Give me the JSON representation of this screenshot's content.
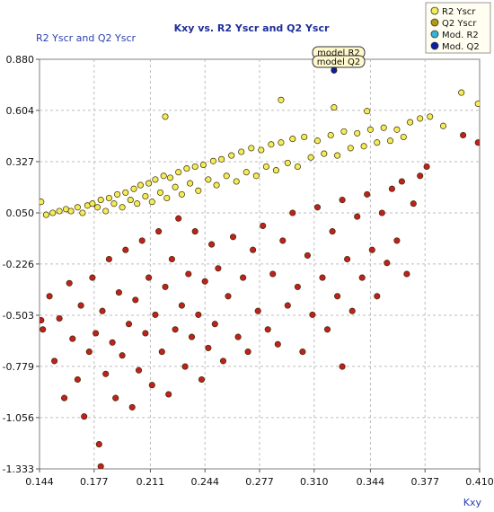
{
  "chart_data": {
    "type": "scatter",
    "title": "Kxy vs. R2 Yscr and Q2 Yscr",
    "ylabel": "R2 Yscr and Q2 Yscr",
    "xlabel": "Kxy",
    "xlim": [
      0.144,
      0.41
    ],
    "ylim": [
      -1.333,
      0.88
    ],
    "x_ticks": [
      "0.144",
      "0.177",
      "0.211",
      "0.244",
      "0.277",
      "0.310",
      "0.344",
      "0.377",
      "0.410"
    ],
    "y_ticks": [
      "0.880",
      "0.604",
      "0.327",
      "0.050",
      "-0.226",
      "-0.503",
      "-0.779",
      "-1.056",
      "-1.333"
    ],
    "grid": "dashed",
    "legend_position": "top-right",
    "annotations": [
      "model R2",
      "model Q2"
    ],
    "series": [
      {
        "name": "R2 Yscr",
        "color": "#f2ec5a",
        "values": [
          [
            0.148,
            0.04
          ],
          [
            0.152,
            0.05
          ],
          [
            0.156,
            0.06
          ],
          [
            0.16,
            0.07
          ],
          [
            0.163,
            0.06
          ],
          [
            0.167,
            0.08
          ],
          [
            0.17,
            0.05
          ],
          [
            0.173,
            0.09
          ],
          [
            0.176,
            0.1
          ],
          [
            0.179,
            0.08
          ],
          [
            0.181,
            0.12
          ],
          [
            0.184,
            0.06
          ],
          [
            0.186,
            0.13
          ],
          [
            0.189,
            0.1
          ],
          [
            0.191,
            0.15
          ],
          [
            0.194,
            0.08
          ],
          [
            0.196,
            0.16
          ],
          [
            0.199,
            0.12
          ],
          [
            0.201,
            0.18
          ],
          [
            0.203,
            0.1
          ],
          [
            0.205,
            0.2
          ],
          [
            0.208,
            0.14
          ],
          [
            0.21,
            0.21
          ],
          [
            0.212,
            0.11
          ],
          [
            0.214,
            0.23
          ],
          [
            0.217,
            0.16
          ],
          [
            0.219,
            0.25
          ],
          [
            0.221,
            0.13
          ],
          [
            0.223,
            0.24
          ],
          [
            0.226,
            0.19
          ],
          [
            0.228,
            0.27
          ],
          [
            0.23,
            0.15
          ],
          [
            0.233,
            0.29
          ],
          [
            0.235,
            0.21
          ],
          [
            0.238,
            0.3
          ],
          [
            0.24,
            0.17
          ],
          [
            0.243,
            0.31
          ],
          [
            0.246,
            0.23
          ],
          [
            0.249,
            0.33
          ],
          [
            0.251,
            0.2
          ],
          [
            0.254,
            0.34
          ],
          [
            0.257,
            0.25
          ],
          [
            0.26,
            0.36
          ],
          [
            0.263,
            0.22
          ],
          [
            0.266,
            0.38
          ],
          [
            0.269,
            0.27
          ],
          [
            0.272,
            0.4
          ],
          [
            0.275,
            0.25
          ],
          [
            0.278,
            0.39
          ],
          [
            0.281,
            0.3
          ],
          [
            0.284,
            0.42
          ],
          [
            0.287,
            0.28
          ],
          [
            0.29,
            0.43
          ],
          [
            0.294,
            0.32
          ],
          [
            0.297,
            0.45
          ],
          [
            0.3,
            0.3
          ],
          [
            0.304,
            0.46
          ],
          [
            0.308,
            0.35
          ],
          [
            0.312,
            0.44
          ],
          [
            0.316,
            0.37
          ],
          [
            0.32,
            0.47
          ],
          [
            0.324,
            0.36
          ],
          [
            0.328,
            0.49
          ],
          [
            0.332,
            0.4
          ],
          [
            0.336,
            0.48
          ],
          [
            0.34,
            0.41
          ],
          [
            0.344,
            0.5
          ],
          [
            0.348,
            0.43
          ],
          [
            0.352,
            0.51
          ],
          [
            0.356,
            0.44
          ],
          [
            0.36,
            0.5
          ],
          [
            0.364,
            0.46
          ],
          [
            0.368,
            0.54
          ],
          [
            0.374,
            0.56
          ],
          [
            0.38,
            0.57
          ],
          [
            0.388,
            0.52
          ],
          [
            0.399,
            0.7
          ],
          [
            0.409,
            0.64
          ],
          [
            0.22,
            0.57
          ],
          [
            0.29,
            0.66
          ],
          [
            0.322,
            0.62
          ],
          [
            0.342,
            0.6
          ],
          [
            0.145,
            0.11
          ]
        ]
      },
      {
        "name": "Q2 Yscr",
        "color": "#c0211f",
        "values": [
          [
            0.146,
            -0.58
          ],
          [
            0.15,
            -0.4
          ],
          [
            0.153,
            -0.75
          ],
          [
            0.156,
            -0.52
          ],
          [
            0.159,
            -0.95
          ],
          [
            0.162,
            -0.33
          ],
          [
            0.164,
            -0.63
          ],
          [
            0.167,
            -0.85
          ],
          [
            0.169,
            -0.45
          ],
          [
            0.171,
            -1.05
          ],
          [
            0.174,
            -0.7
          ],
          [
            0.176,
            -0.3
          ],
          [
            0.178,
            -0.6
          ],
          [
            0.18,
            -1.2
          ],
          [
            0.182,
            -0.48
          ],
          [
            0.184,
            -0.82
          ],
          [
            0.186,
            -0.2
          ],
          [
            0.188,
            -0.65
          ],
          [
            0.19,
            -0.95
          ],
          [
            0.192,
            -0.38
          ],
          [
            0.194,
            -0.72
          ],
          [
            0.196,
            -0.15
          ],
          [
            0.198,
            -0.55
          ],
          [
            0.2,
            -1.0
          ],
          [
            0.202,
            -0.42
          ],
          [
            0.204,
            -0.8
          ],
          [
            0.206,
            -0.1
          ],
          [
            0.208,
            -0.6
          ],
          [
            0.21,
            -0.3
          ],
          [
            0.212,
            -0.88
          ],
          [
            0.214,
            -0.5
          ],
          [
            0.216,
            -0.05
          ],
          [
            0.218,
            -0.7
          ],
          [
            0.22,
            -0.35
          ],
          [
            0.222,
            -0.93
          ],
          [
            0.224,
            -0.2
          ],
          [
            0.226,
            -0.58
          ],
          [
            0.228,
            0.02
          ],
          [
            0.23,
            -0.45
          ],
          [
            0.232,
            -0.78
          ],
          [
            0.234,
            -0.28
          ],
          [
            0.236,
            -0.62
          ],
          [
            0.238,
            -0.05
          ],
          [
            0.24,
            -0.5
          ],
          [
            0.242,
            -0.85
          ],
          [
            0.244,
            -0.32
          ],
          [
            0.246,
            -0.68
          ],
          [
            0.248,
            -0.12
          ],
          [
            0.25,
            -0.55
          ],
          [
            0.252,
            -0.25
          ],
          [
            0.255,
            -0.75
          ],
          [
            0.258,
            -0.4
          ],
          [
            0.261,
            -0.08
          ],
          [
            0.264,
            -0.62
          ],
          [
            0.267,
            -0.3
          ],
          [
            0.27,
            -0.7
          ],
          [
            0.273,
            -0.15
          ],
          [
            0.276,
            -0.48
          ],
          [
            0.279,
            -0.02
          ],
          [
            0.282,
            -0.58
          ],
          [
            0.285,
            -0.28
          ],
          [
            0.288,
            -0.66
          ],
          [
            0.291,
            -0.1
          ],
          [
            0.294,
            -0.45
          ],
          [
            0.297,
            0.05
          ],
          [
            0.3,
            -0.35
          ],
          [
            0.303,
            -0.7
          ],
          [
            0.306,
            -0.18
          ],
          [
            0.309,
            -0.5
          ],
          [
            0.312,
            0.08
          ],
          [
            0.315,
            -0.3
          ],
          [
            0.318,
            -0.58
          ],
          [
            0.321,
            -0.05
          ],
          [
            0.324,
            -0.4
          ],
          [
            0.327,
            0.12
          ],
          [
            0.33,
            -0.2
          ],
          [
            0.333,
            -0.48
          ],
          [
            0.336,
            0.03
          ],
          [
            0.339,
            -0.3
          ],
          [
            0.342,
            0.15
          ],
          [
            0.345,
            -0.15
          ],
          [
            0.348,
            -0.4
          ],
          [
            0.351,
            0.05
          ],
          [
            0.354,
            -0.22
          ],
          [
            0.357,
            0.18
          ],
          [
            0.36,
            -0.1
          ],
          [
            0.363,
            0.22
          ],
          [
            0.366,
            -0.28
          ],
          [
            0.37,
            0.1
          ],
          [
            0.374,
            0.25
          ],
          [
            0.378,
            0.3
          ],
          [
            0.4,
            0.47
          ],
          [
            0.409,
            0.43
          ],
          [
            0.145,
            -0.53
          ],
          [
            0.181,
            -1.32
          ],
          [
            0.327,
            -0.78
          ]
        ]
      },
      {
        "name": "Mod. R2",
        "color": "#35b4d6",
        "values": [
          [
            0.322,
            0.84
          ]
        ]
      },
      {
        "name": "Mod. Q2",
        "color": "#0b1fa0",
        "values": [
          [
            0.322,
            0.82
          ]
        ]
      }
    ]
  },
  "legend": {
    "items": [
      "R2 Yscr",
      "Q2 Yscr",
      "Mod. R2",
      "Mod. Q2"
    ]
  }
}
